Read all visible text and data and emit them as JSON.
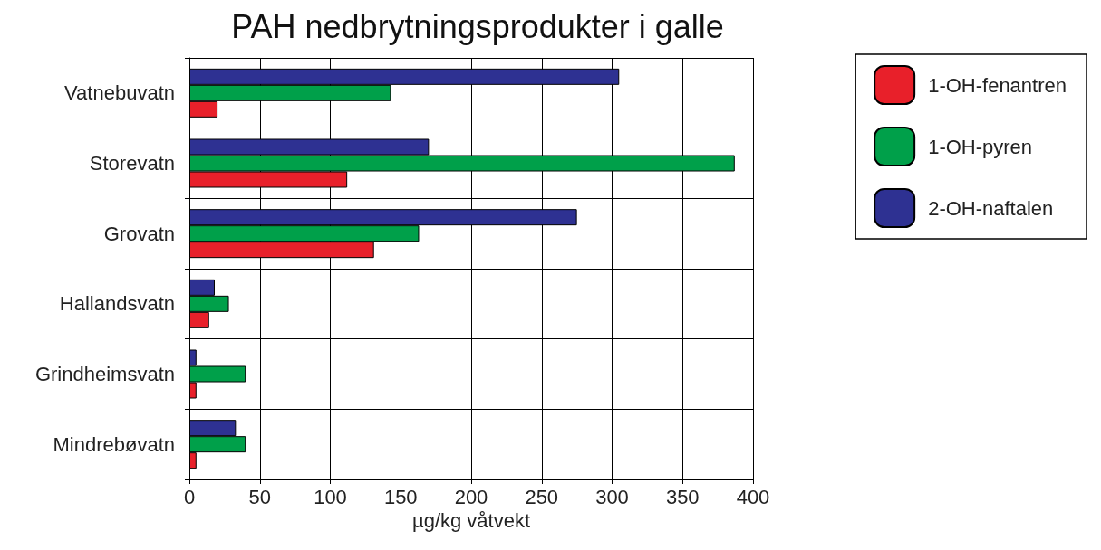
{
  "chart_data": {
    "type": "bar",
    "title": "PAH nedbrytningsprodukter i galle",
    "xlabel": "µg/kg våtvekt",
    "orientation": "horizontal",
    "categories": [
      "Vatnebuvatn",
      "Storevatn",
      "Grovatn",
      "Hallandsvatn",
      "Grindheimsvatn",
      "Mindrebøvatn"
    ],
    "series": [
      {
        "name": "1-OH-fenantren",
        "color": "#e8202a",
        "values": [
          20,
          112,
          131,
          14,
          5,
          5
        ]
      },
      {
        "name": "1-OH-pyren",
        "color": "#00a04a",
        "values": [
          143,
          387,
          163,
          28,
          40,
          40
        ]
      },
      {
        "name": "2-OH-naftalen",
        "color": "#2e3192",
        "values": [
          305,
          170,
          275,
          18,
          5,
          33
        ]
      }
    ],
    "xlim": [
      0,
      400
    ],
    "xticks": [
      0,
      50,
      100,
      150,
      200,
      250,
      300,
      350,
      400
    ],
    "grid": true,
    "legend": "top right"
  }
}
